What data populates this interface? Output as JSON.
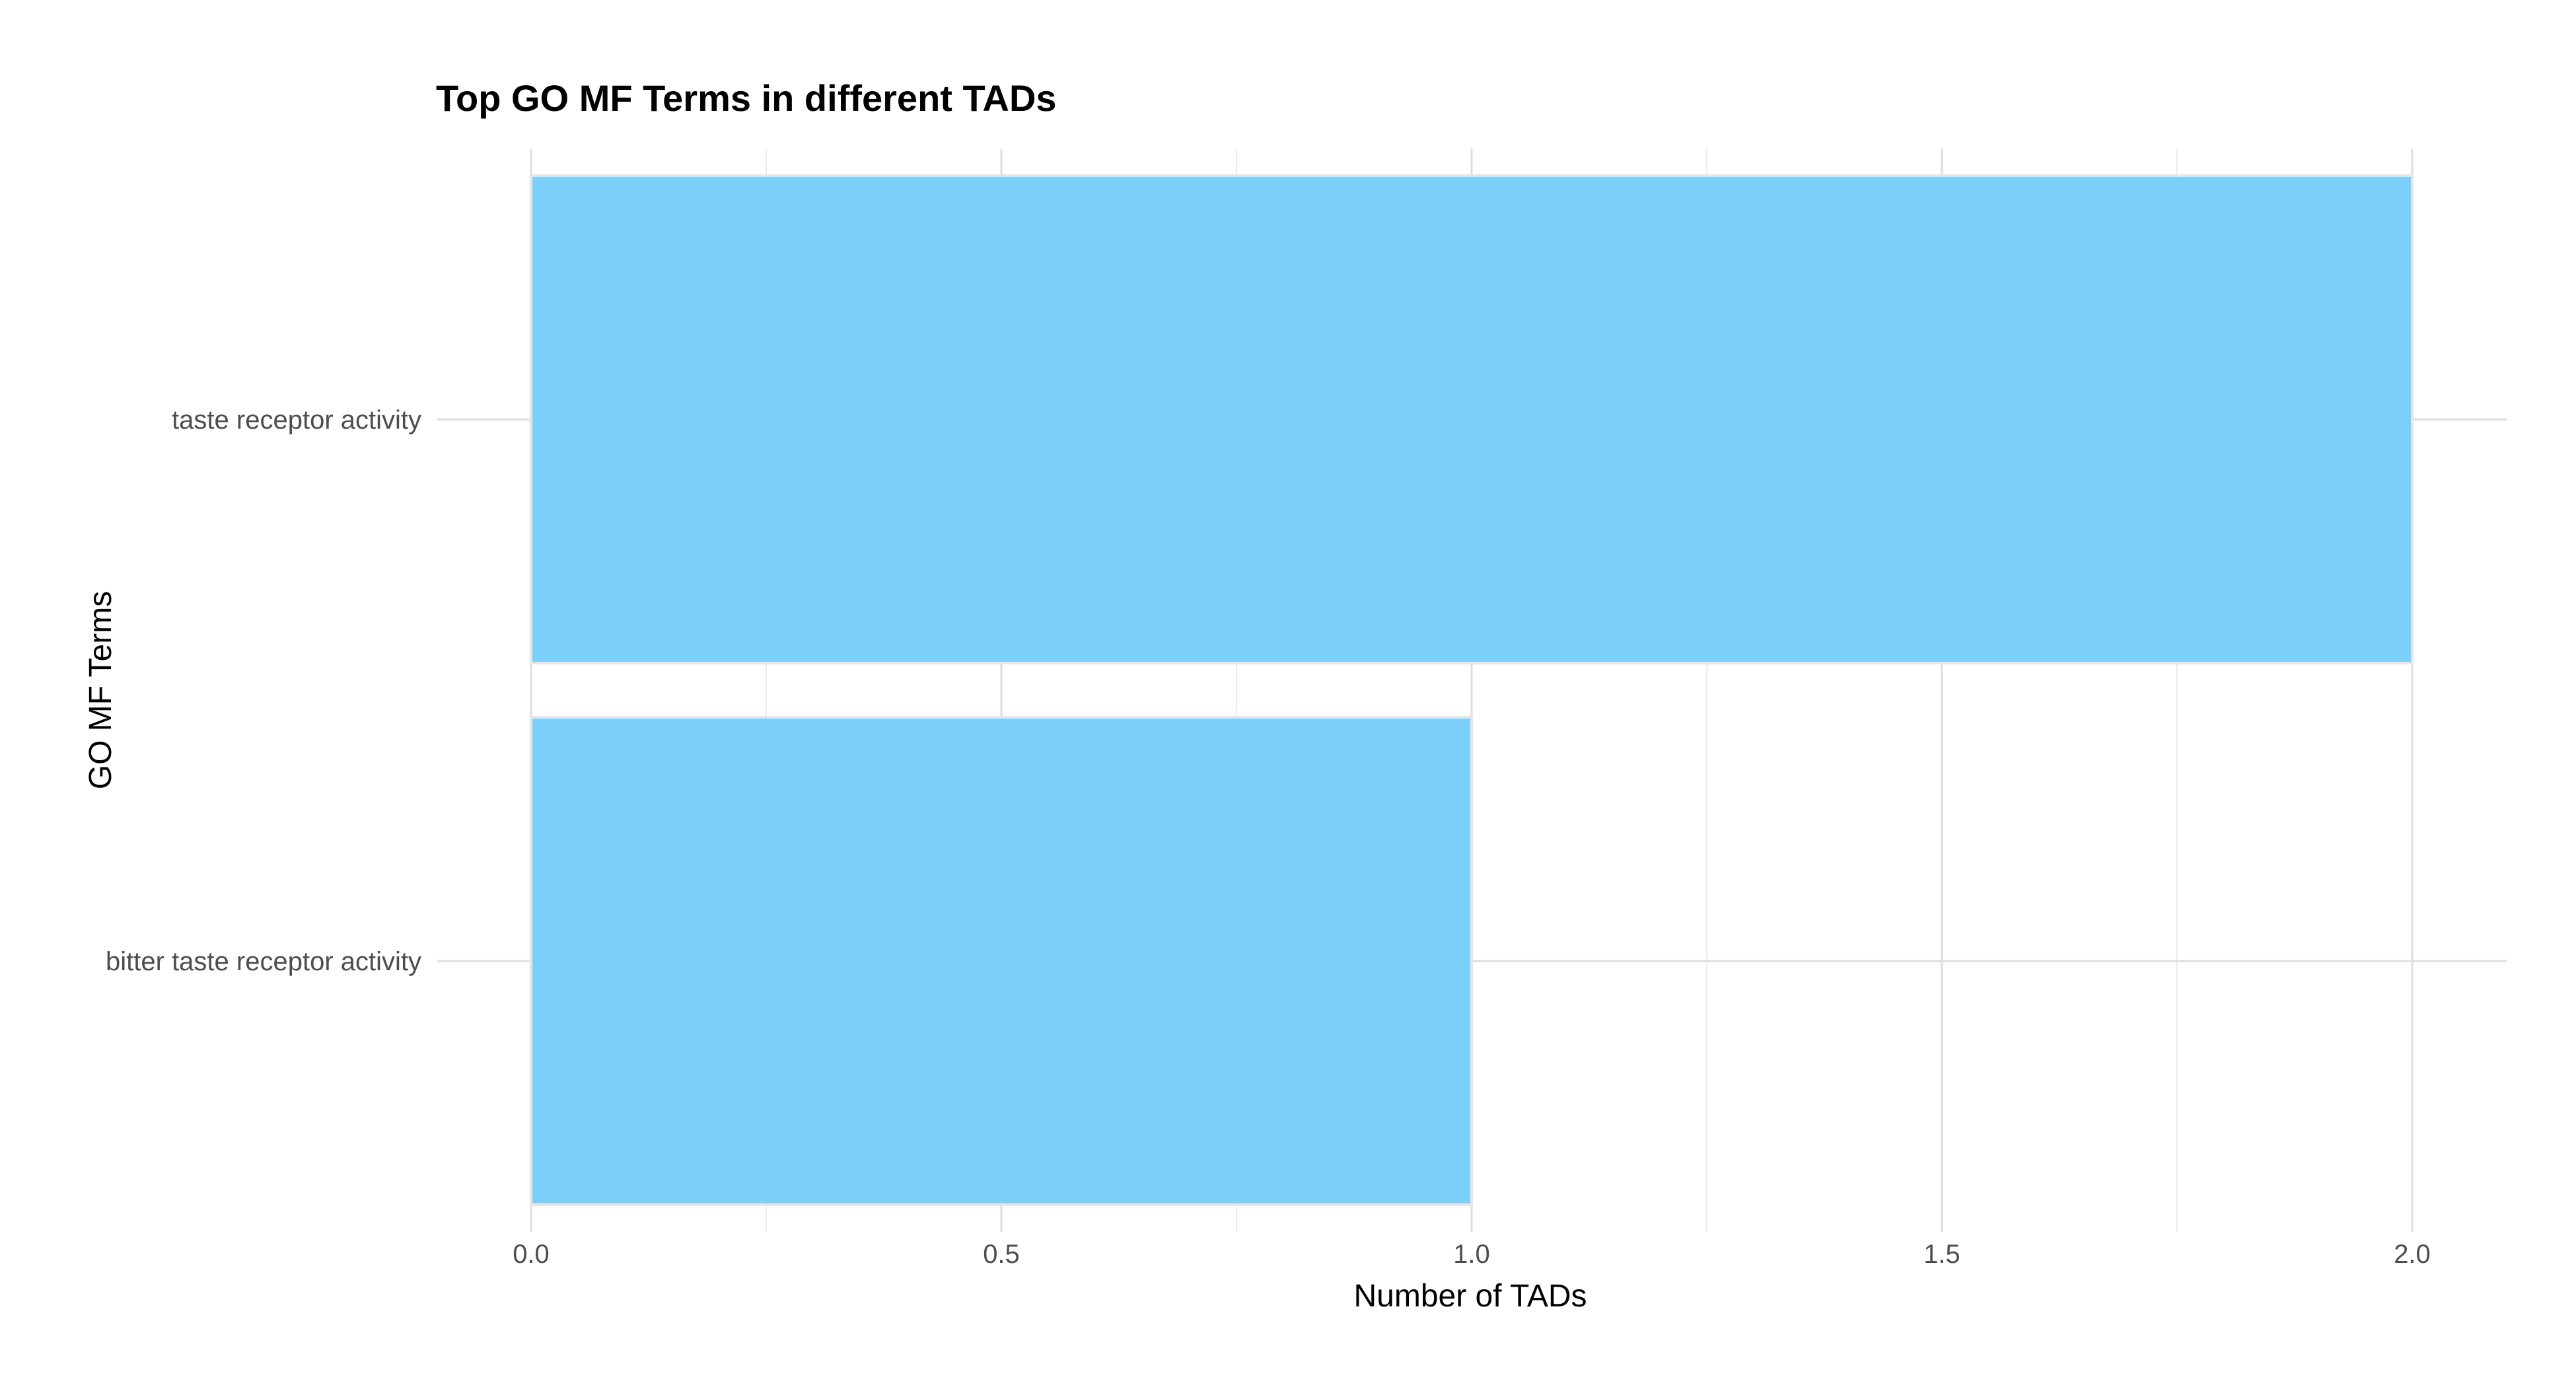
{
  "chart_data": {
    "type": "bar",
    "orientation": "horizontal",
    "title": "Top GO MF Terms in different TADs",
    "xlabel": "Number of TADs",
    "ylabel": "GO MF Terms",
    "categories": [
      "taste receptor activity",
      "bitter taste receptor activity"
    ],
    "values": [
      2,
      1
    ],
    "xlim": [
      0,
      2.1
    ],
    "xticks": [
      0,
      0.5,
      1,
      1.5,
      2
    ],
    "xtick_labels": [
      "0.0",
      "0.5",
      "1.0",
      "1.5",
      "2.0"
    ],
    "bar_color": "#75cffc",
    "grid": true,
    "legend": "none"
  }
}
